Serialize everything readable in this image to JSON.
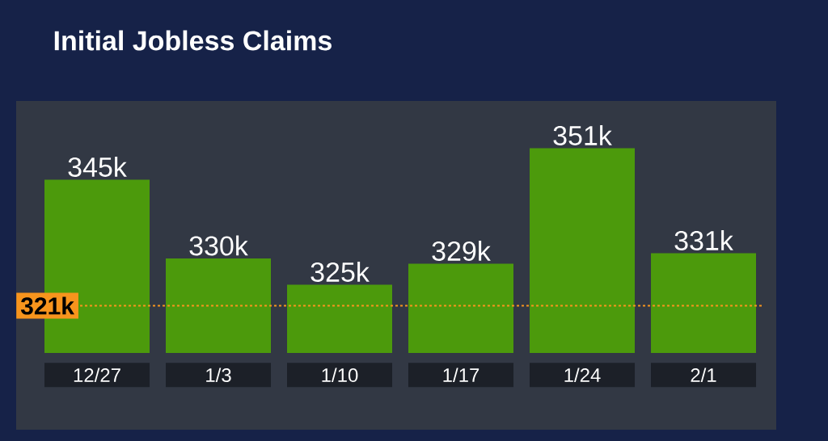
{
  "chart_data": {
    "type": "bar",
    "title": "Initial Jobless Claims",
    "categories": [
      "12/27",
      "1/3",
      "1/10",
      "1/17",
      "1/24",
      "2/1"
    ],
    "values": [
      345,
      330,
      325,
      329,
      351,
      331
    ],
    "value_labels": [
      "345k",
      "330k",
      "325k",
      "329k",
      "351k",
      "331k"
    ],
    "color": "#4c9a0c",
    "ylim": [
      312,
      360
    ],
    "tick_labels": "x",
    "ref_lines": [
      {
        "axis": "y",
        "value": 321,
        "label": "321k",
        "color": "#f7941d",
        "line_style": "dashed"
      }
    ]
  }
}
